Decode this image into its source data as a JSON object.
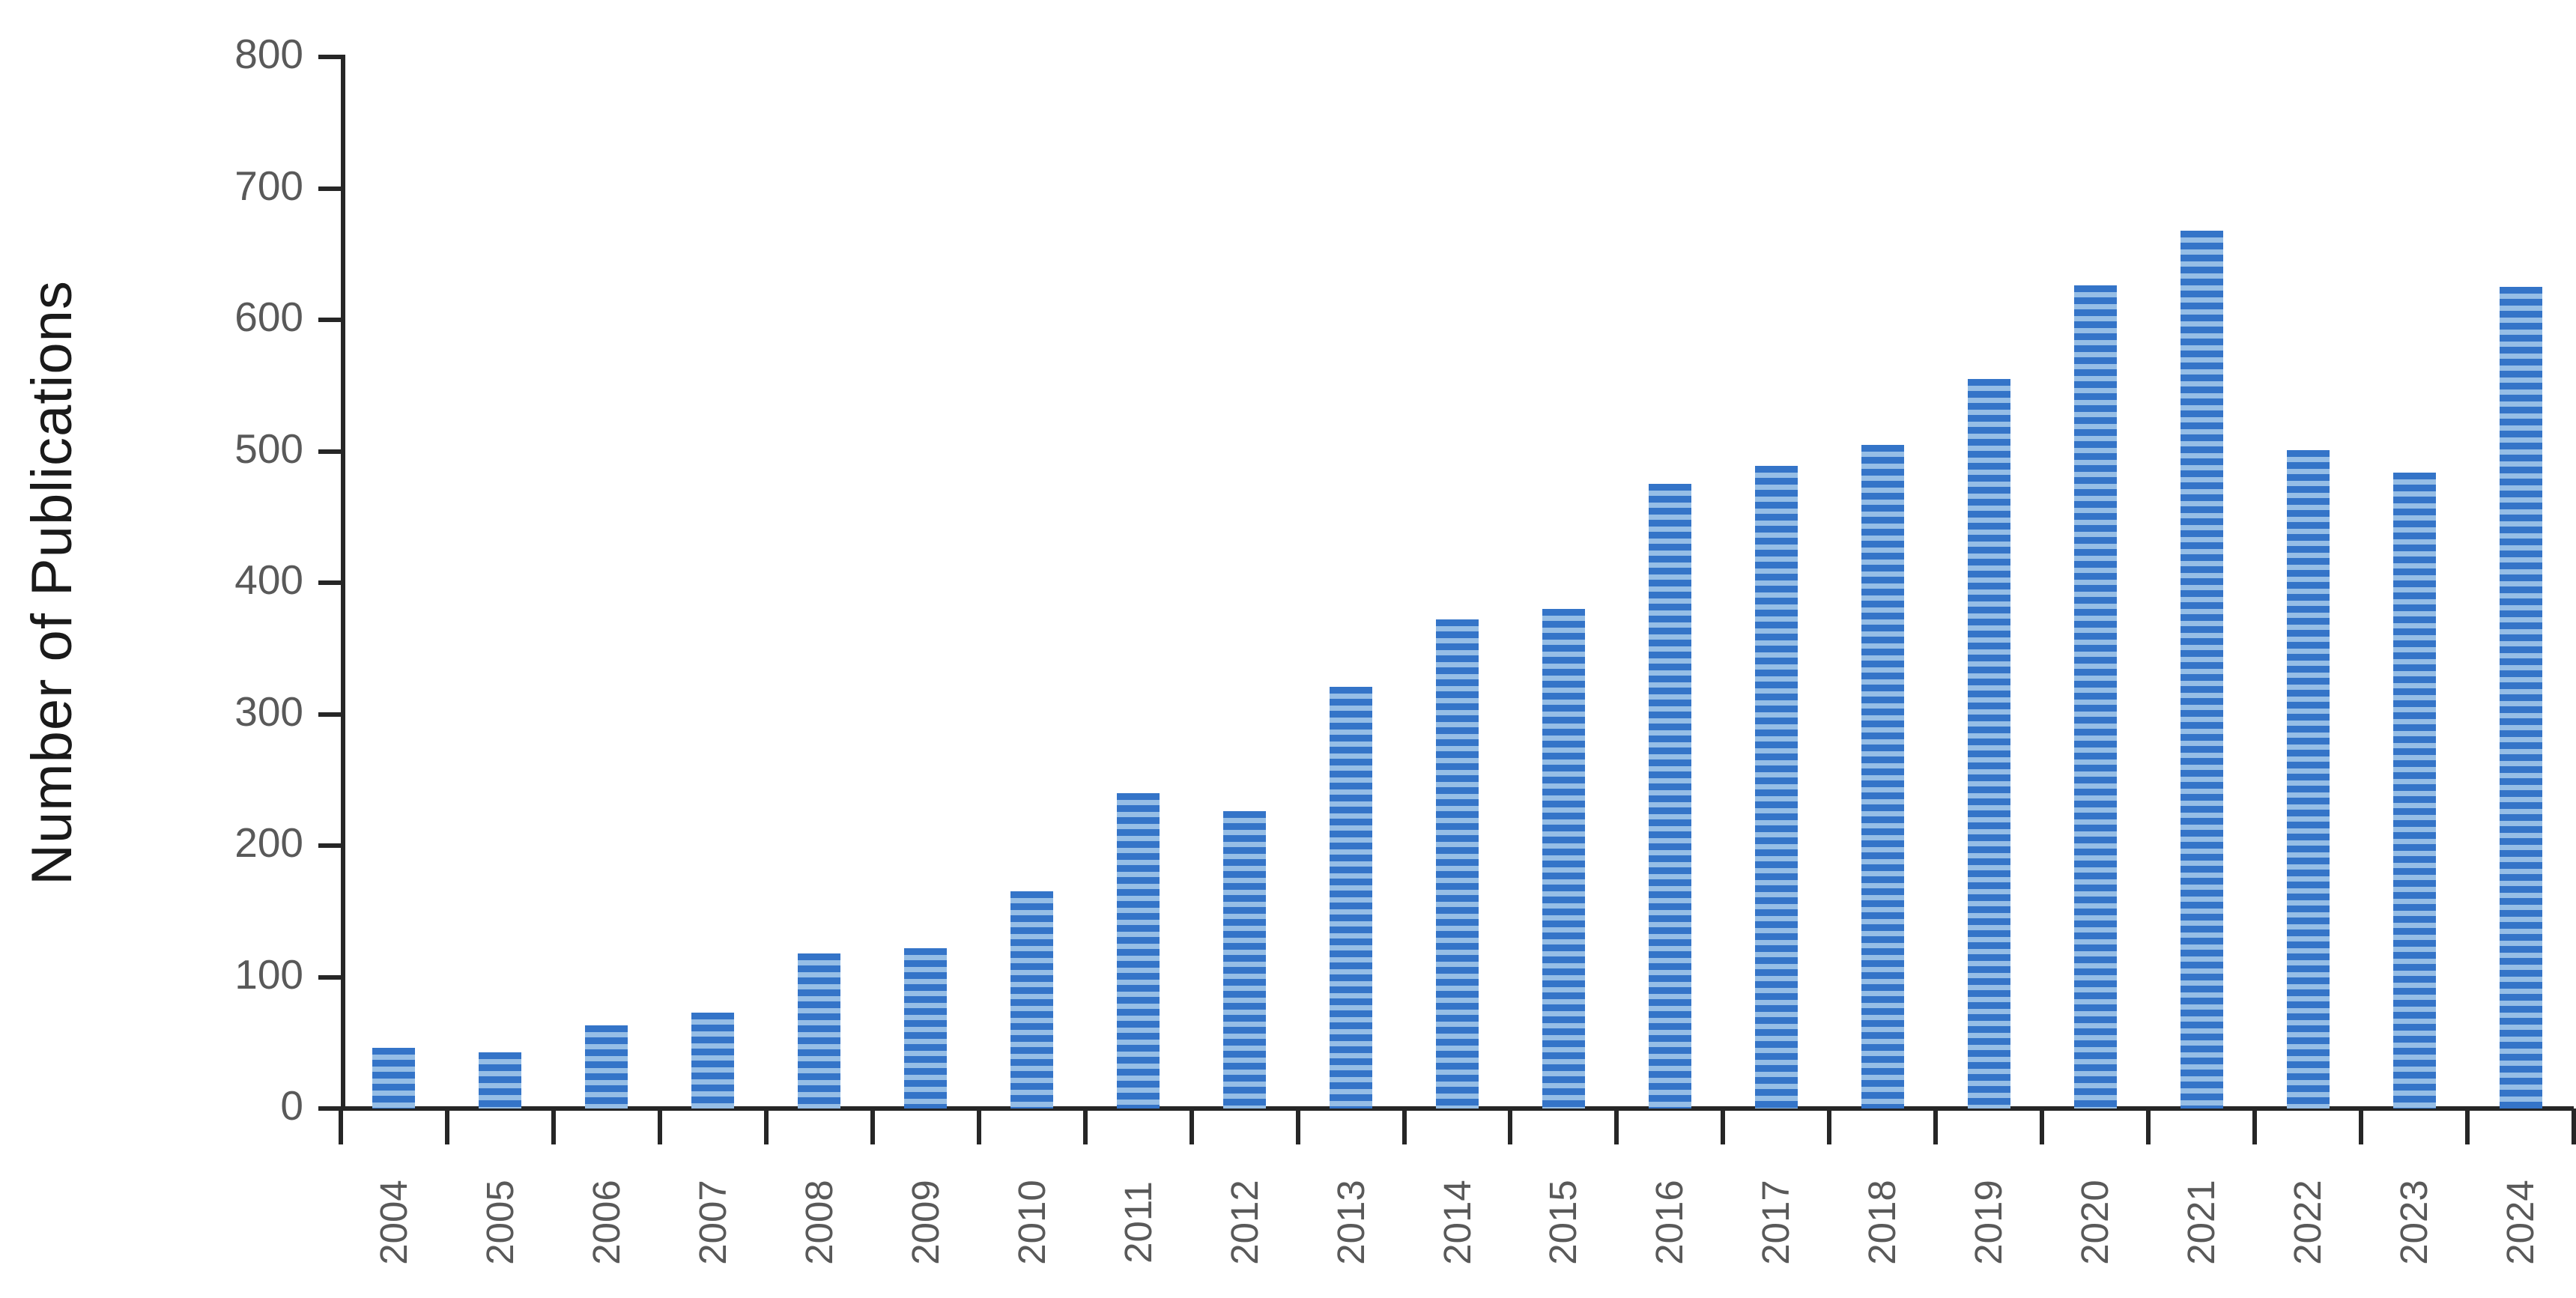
{
  "chart_data": {
    "type": "bar",
    "title": "",
    "xlabel": "",
    "ylabel": "Number of Publications",
    "categories": [
      "2004",
      "2005",
      "2006",
      "2007",
      "2008",
      "2009",
      "2010",
      "2011",
      "2012",
      "2013",
      "2014",
      "2015",
      "2016",
      "2017",
      "2018",
      "2019",
      "2020",
      "2021",
      "2022",
      "2023",
      "2024"
    ],
    "values": [
      46,
      43,
      63,
      73,
      118,
      122,
      165,
      240,
      226,
      321,
      372,
      380,
      475,
      489,
      505,
      555,
      626,
      668,
      501,
      484,
      625
    ],
    "ylim": [
      0,
      800
    ],
    "yticks": [
      0,
      100,
      200,
      300,
      400,
      500,
      600,
      700,
      800
    ],
    "grid": false,
    "legend_position": "none",
    "bar_stripe_dark_color": "#3474C8",
    "bar_stripe_light_color": "#96BEE6",
    "axis_color": "#262626",
    "tick_label_color": "#595959",
    "title_color": "#1a1a1a"
  }
}
